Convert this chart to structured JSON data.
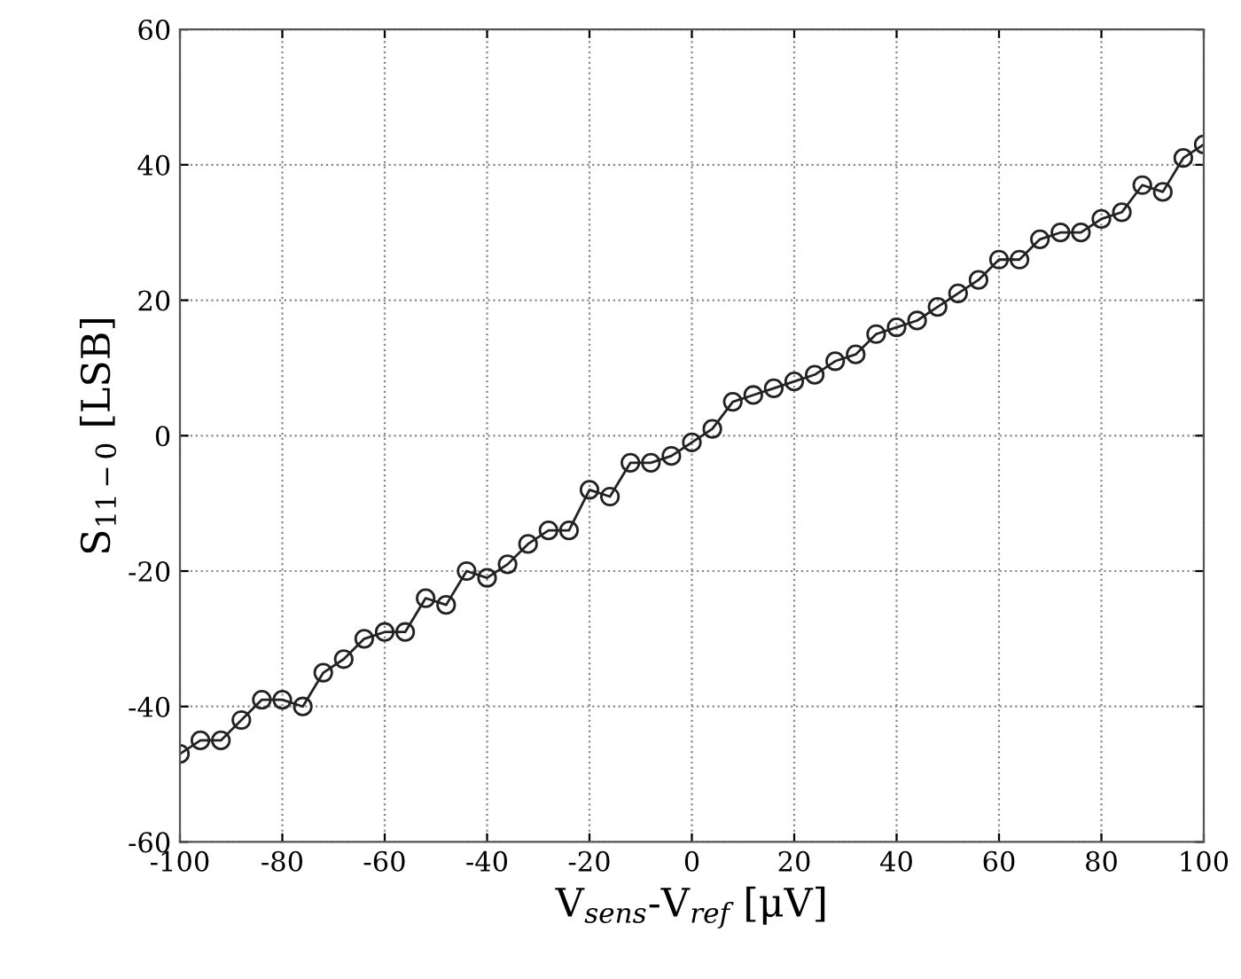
{
  "chart_data": {
    "type": "line",
    "xlabel": "V$_{sens}$-V$_{ref}$ [μV]",
    "ylabel": "S$_{11−0}$ [LSB]",
    "x": [
      -100,
      -96,
      -92,
      -88,
      -84,
      -80,
      -76,
      -72,
      -68,
      -64,
      -60,
      -56,
      -52,
      -48,
      -44,
      -40,
      -36,
      -32,
      -28,
      -24,
      -20,
      -16,
      -12,
      -8,
      -4,
      0,
      4,
      8,
      12,
      16,
      20,
      24,
      28,
      32,
      36,
      40,
      44,
      48,
      52,
      56,
      60,
      64,
      68,
      72,
      76,
      80,
      84,
      88,
      92,
      96,
      100
    ],
    "series": [
      {
        "color": "#222222",
        "values": [
          -47,
          -45,
          -45,
          -42,
          -39,
          -39,
          -40,
          -35,
          -33,
          -30,
          -29,
          -29,
          -24,
          -25,
          -20,
          -21,
          -19,
          -16,
          -14,
          -14,
          -8,
          -9,
          -4,
          -4,
          -3,
          -1,
          1,
          5,
          6,
          7,
          8,
          9,
          11,
          12,
          15,
          16,
          17,
          19,
          21,
          23,
          26,
          26,
          29,
          30,
          30,
          32,
          33,
          37,
          36,
          41,
          43
        ]
      }
    ],
    "xlim": [
      -100,
      100
    ],
    "xticks": [
      -100,
      -80,
      -60,
      -40,
      -20,
      0,
      20,
      40,
      60,
      80,
      100
    ],
    "ylim": [
      -60,
      60
    ],
    "yticks": [
      -60,
      -40,
      -20,
      0,
      20,
      40,
      60
    ],
    "grid": true,
    "marker": "circle",
    "line_style": "solid",
    "legend": false
  }
}
